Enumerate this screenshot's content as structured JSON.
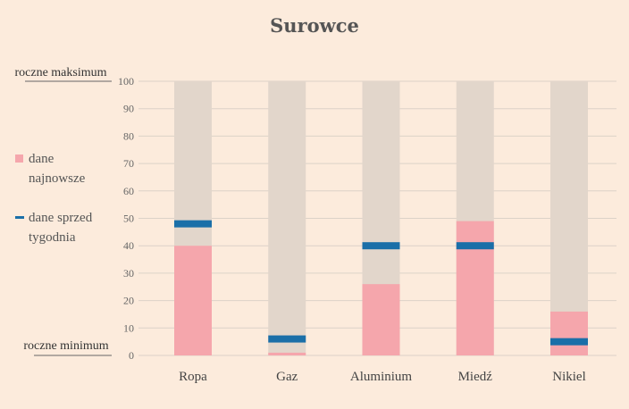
{
  "chart_data": {
    "type": "bar",
    "title": "Surowce",
    "categories": [
      "Ropa",
      "Gaz",
      "Aluminium",
      "Miedź",
      "Nikiel"
    ],
    "series": [
      {
        "name": "dane najnowsze",
        "type": "bar",
        "values": [
          40,
          1,
          26,
          49,
          16
        ]
      },
      {
        "name": "dane sprzed tygodnia",
        "type": "marker",
        "values": [
          48,
          6,
          40,
          40,
          5
        ]
      }
    ],
    "background_values": [
      100,
      100,
      100,
      100,
      100
    ],
    "ylim": [
      0,
      100
    ],
    "yticks": [
      0,
      10,
      20,
      30,
      40,
      50,
      60,
      70,
      80,
      90,
      100
    ],
    "top_label": "roczne maksimum",
    "bottom_label": "roczne minimum",
    "grid": true,
    "legend_position": "left",
    "colors": {
      "background": "#fcebdc",
      "range_bar": "#e2d6cb",
      "latest": "#f5a6ac",
      "week_ago": "#1a6fa8",
      "grid": "#dcd2c8"
    }
  }
}
